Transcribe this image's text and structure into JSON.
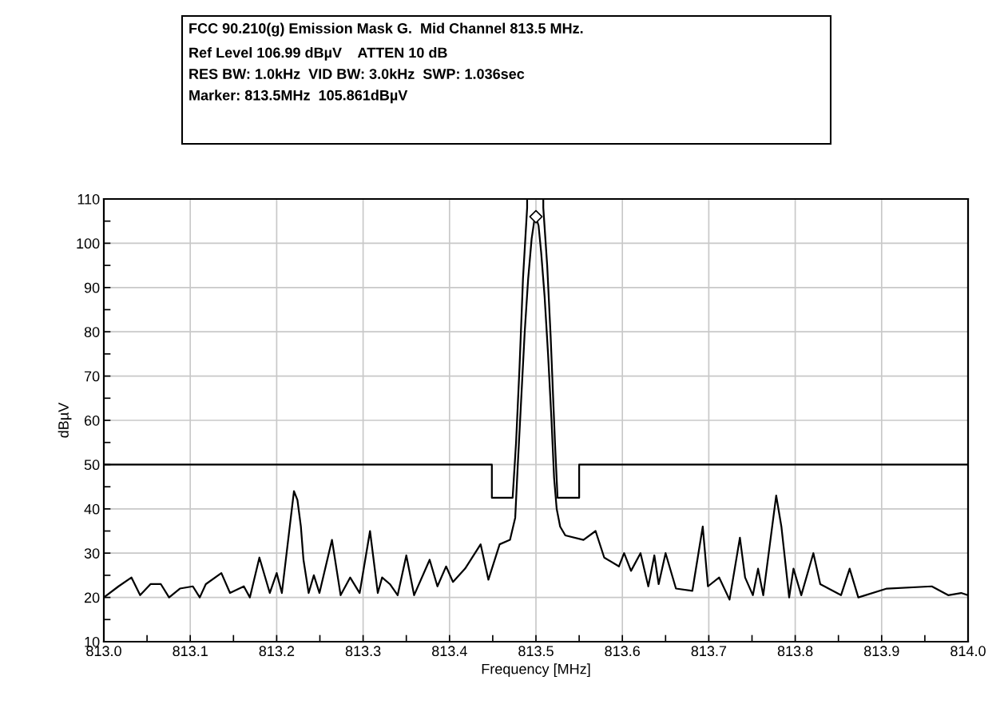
{
  "chart_data": {
    "type": "line",
    "title": "FCC 90.210(g) Emission Mask G.  Mid Channel 813.5 MHz.",
    "subtitle": "Ref Level 106.99 dBµV    ATTEN 10 dB\nRES BW: 1.0kHz  VID BW: 3.0kHz  SWP: 1.036sec\nMarker: 813.5MHz  105.861dBµV",
    "xlabel": "Frequency [MHz]",
    "ylabel": "dBµV",
    "xlim": [
      813.0,
      814.0
    ],
    "ylim": [
      10,
      110
    ],
    "xticks": [
      {
        "value": 813.0,
        "label": "813.0"
      },
      {
        "value": 813.05,
        "label": null
      },
      813.1,
      {
        "value": 813.15,
        "label": null
      },
      813.2,
      {
        "value": 813.25,
        "label": null
      },
      813.3,
      {
        "value": 813.35,
        "label": null
      },
      813.4,
      {
        "value": 813.45,
        "label": null
      },
      813.5,
      {
        "value": 813.55,
        "label": null
      },
      813.6,
      {
        "value": 813.65,
        "label": null
      },
      813.7,
      {
        "value": 813.75,
        "label": null
      },
      813.8,
      {
        "value": 813.85,
        "label": null
      },
      813.9,
      {
        "value": 813.95,
        "label": null
      },
      {
        "value": 814.0,
        "label": "814.0"
      }
    ],
    "yticks": [
      10,
      {
        "value": 15,
        "label": null
      },
      20,
      {
        "value": 25,
        "label": null
      },
      30,
      {
        "value": 35,
        "label": null
      },
      40,
      {
        "value": 45,
        "label": null
      },
      50,
      {
        "value": 55,
        "label": null
      },
      60,
      {
        "value": 65,
        "label": null
      },
      70,
      {
        "value": 75,
        "label": null
      },
      80,
      {
        "value": 85,
        "label": null
      },
      90,
      {
        "value": 95,
        "label": null
      },
      100,
      {
        "value": 105,
        "label": null
      },
      110
    ],
    "grid": true,
    "legend": false,
    "line_style": "solid",
    "marker": "none",
    "series": [
      {
        "color": "#000000",
        "x": [
          813.0,
          813.017,
          813.032,
          813.042,
          813.054,
          813.066,
          813.0755,
          813.088,
          813.103,
          813.111,
          813.118,
          813.136,
          813.146,
          813.162,
          813.169,
          813.18,
          813.192,
          813.2,
          813.206,
          813.22,
          813.224,
          813.228,
          813.231,
          813.237,
          813.243,
          813.2495,
          813.264,
          813.274,
          813.285,
          813.296,
          813.308,
          813.317,
          813.322,
          813.331,
          813.34,
          813.35,
          813.359,
          813.377,
          813.386,
          813.396,
          813.404,
          813.418,
          813.436,
          813.445,
          813.458,
          813.47,
          813.476,
          813.479,
          813.483,
          813.487,
          813.491,
          813.495,
          813.498,
          813.5,
          813.503,
          813.506,
          813.51,
          813.514,
          813.518,
          813.521,
          813.524,
          813.528,
          813.534,
          813.555,
          813.569,
          813.579,
          813.596,
          813.602,
          813.61,
          813.621,
          813.63,
          813.637,
          813.642,
          813.65,
          813.662,
          813.681,
          813.693,
          813.699,
          813.712,
          813.724,
          813.736,
          813.742,
          813.751,
          813.757,
          813.763,
          813.778,
          813.784,
          813.793,
          813.798,
          813.807,
          813.821,
          813.829,
          813.853,
          813.863,
          813.873,
          813.906,
          813.958,
          813.977,
          813.992,
          814.0
        ],
        "values": [
          20,
          22.5,
          24.5,
          20.5,
          23,
          23,
          20,
          22,
          22.5,
          20,
          23,
          25.5,
          21,
          22.5,
          20,
          29,
          21,
          25.5,
          21,
          44,
          42,
          36,
          28.5,
          21,
          25,
          21,
          33,
          20.5,
          24.5,
          21,
          35,
          21,
          24.5,
          23,
          20.5,
          29.5,
          20.5,
          28.5,
          22.5,
          27,
          23.5,
          26.5,
          32,
          24,
          32,
          33,
          38,
          50,
          65,
          80,
          92,
          101,
          105,
          105.9,
          104,
          98,
          88,
          75,
          60,
          47,
          40,
          36,
          34,
          33,
          35,
          29,
          27,
          30,
          26,
          30,
          22.5,
          29.5,
          23,
          30,
          22,
          21.5,
          36,
          22.5,
          24.5,
          19.5,
          33.5,
          24.5,
          20.5,
          26.5,
          20.5,
          43,
          36,
          20,
          26.5,
          20.5,
          30,
          23,
          20.5,
          26.5,
          20,
          22,
          22.5,
          20.5,
          21,
          20.5
        ]
      },
      {
        "color": "#000000",
        "x": [
          813.0,
          813.449,
          813.449,
          813.473,
          813.477,
          813.481,
          813.485,
          813.4898,
          813.4898,
          813.5085,
          813.5085,
          813.513,
          813.517,
          813.522,
          813.525,
          813.55,
          813.55,
          814.0
        ],
        "values": [
          50,
          50,
          42.5,
          42.5,
          55,
          72,
          92,
          108,
          110,
          110,
          108,
          95,
          79,
          55,
          42.5,
          42.5,
          50,
          50
        ]
      },
      {
        "type": "scatter",
        "color": "#000000",
        "marker": "diamond",
        "x": [
          813.5
        ],
        "values": [
          106
        ]
      }
    ]
  }
}
